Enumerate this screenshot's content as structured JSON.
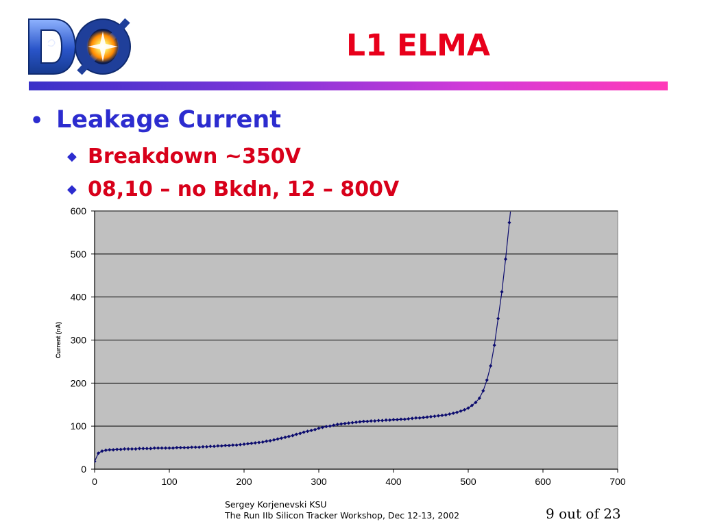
{
  "slide": {
    "title": "L1 ELMA",
    "bullet": "Leakage Current",
    "subbullets": [
      "Breakdown ~350V",
      "08,10 – no Bkdn, 12 – 800V"
    ],
    "footer_line1": "Sergey Korjenevski KSU",
    "footer_line2": "The Run IIb Silicon Tracker Workshop,  Dec 12-13, 2002",
    "page": "9 out of 23"
  },
  "logo": {
    "name": "d0-logo",
    "text": "DØ"
  },
  "colors": {
    "title": "#e8001b",
    "bullet": "#2c2ccf",
    "subbullet": "#d8001a",
    "plot_bg": "#c0c0c0",
    "series": "#0b0b6e"
  },
  "chart_data": {
    "type": "line",
    "xlabel": "",
    "ylabel": "Current (nA)",
    "xlim": [
      0,
      700
    ],
    "ylim": [
      0,
      600
    ],
    "xticks": [
      "0",
      "100",
      "200",
      "300",
      "400",
      "500",
      "600",
      "700"
    ],
    "yticks": [
      "0",
      "100",
      "200",
      "300",
      "400",
      "500",
      "600"
    ],
    "grid": "horizontal",
    "series": [
      {
        "name": "",
        "x": [
          0,
          5,
          10,
          15,
          20,
          25,
          30,
          35,
          40,
          45,
          50,
          55,
          60,
          65,
          70,
          75,
          80,
          85,
          90,
          95,
          100,
          105,
          110,
          115,
          120,
          125,
          130,
          135,
          140,
          145,
          150,
          155,
          160,
          165,
          170,
          175,
          180,
          185,
          190,
          195,
          200,
          205,
          210,
          215,
          220,
          225,
          230,
          235,
          240,
          245,
          250,
          255,
          260,
          265,
          270,
          275,
          280,
          285,
          290,
          295,
          300,
          305,
          310,
          315,
          320,
          325,
          330,
          335,
          340,
          345,
          350,
          355,
          360,
          365,
          370,
          375,
          380,
          385,
          390,
          395,
          400,
          405,
          410,
          415,
          420,
          425,
          430,
          435,
          440,
          445,
          450,
          455,
          460,
          465,
          470,
          475,
          480,
          485,
          490,
          495,
          500,
          505,
          510,
          515,
          520,
          525,
          530,
          535,
          540,
          545,
          550,
          555
        ],
        "y": [
          18,
          37,
          42,
          44,
          45,
          45,
          46,
          46,
          47,
          47,
          47,
          47,
          48,
          48,
          48,
          48,
          49,
          49,
          49,
          49,
          49,
          49,
          50,
          50,
          50,
          50,
          51,
          51,
          51,
          52,
          52,
          53,
          53,
          54,
          54,
          55,
          55,
          56,
          56,
          57,
          58,
          59,
          60,
          61,
          62,
          63,
          65,
          66,
          68,
          70,
          72,
          74,
          76,
          78,
          81,
          83,
          86,
          88,
          90,
          92,
          95,
          97,
          99,
          100,
          102,
          104,
          105,
          106,
          107,
          108,
          109,
          110,
          111,
          111,
          112,
          112,
          113,
          113,
          114,
          114,
          115,
          115,
          116,
          116,
          117,
          118,
          119,
          119,
          120,
          121,
          122,
          123,
          124,
          125,
          126,
          128,
          130,
          132,
          135,
          138,
          142,
          148,
          155,
          165,
          182,
          207,
          240,
          288,
          350,
          412,
          488,
          573
        ]
      }
    ]
  }
}
